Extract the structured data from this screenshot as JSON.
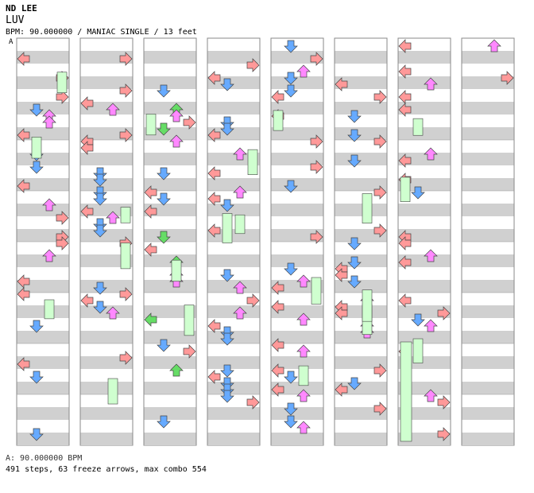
{
  "header": {
    "artist": "ND LEE",
    "title": "LUV",
    "info": "BPM: 90.000000 / MANIAC SINGLE / 13 feet"
  },
  "marker": "A",
  "footer": {
    "bpm_change": "A: 90.000000 BPM",
    "stats": "491 steps, 63 freeze arrows, max combo 554"
  },
  "colors": {
    "left_right": "#ff9999",
    "down": "#66aaff",
    "up": "#66dd66",
    "up_alt": "#ff88ff",
    "freeze": "#cfffcf",
    "stripe": "#d0d0d0"
  }
}
